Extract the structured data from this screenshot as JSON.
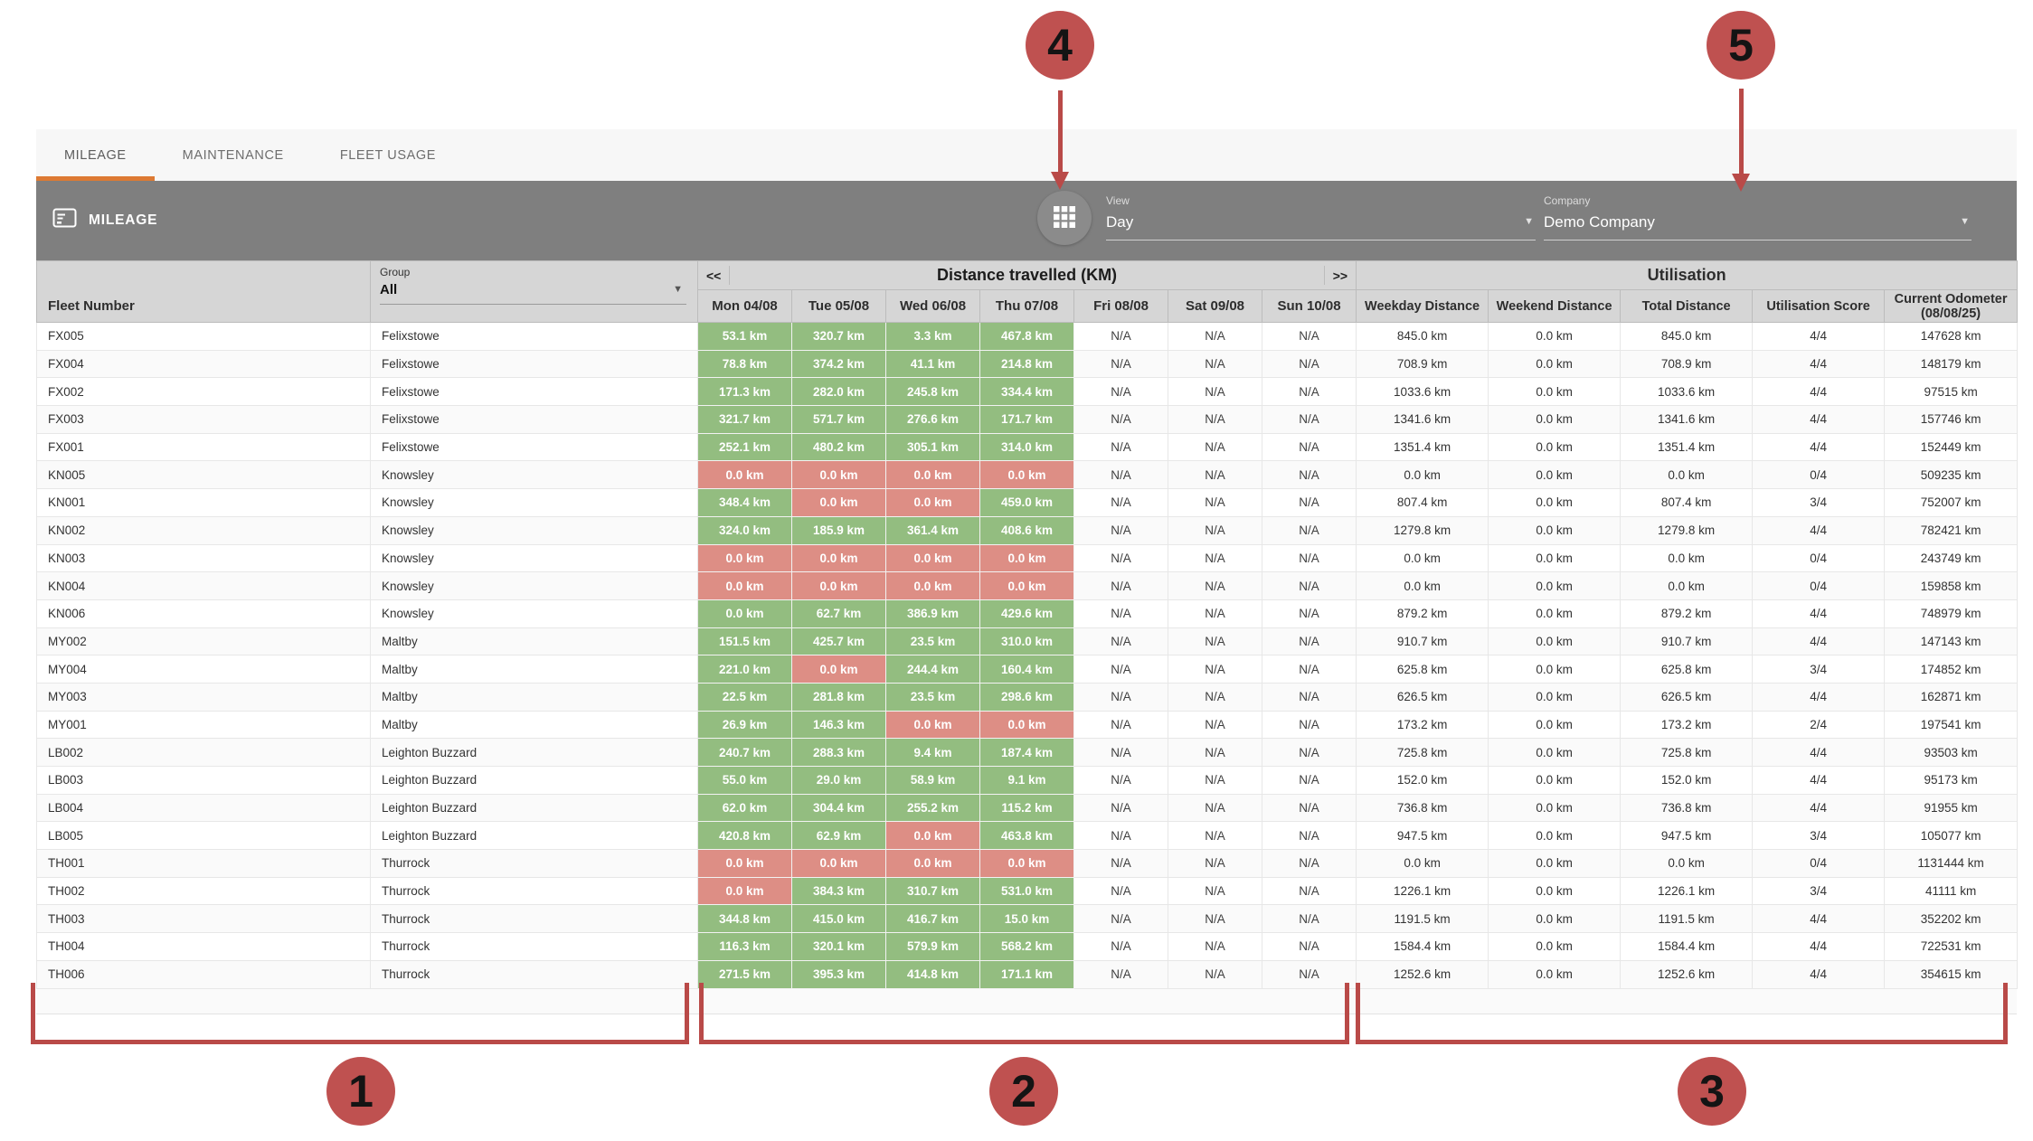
{
  "tabs": [
    {
      "label": "MILEAGE",
      "active": true
    },
    {
      "label": "MAINTENANCE",
      "active": false
    },
    {
      "label": "FLEET USAGE",
      "active": false
    }
  ],
  "header": {
    "title": "MILEAGE",
    "view": {
      "label": "View",
      "value": "Day"
    },
    "company": {
      "label": "Company",
      "value": "Demo Company"
    }
  },
  "table": {
    "fleet_header": "Fleet Number",
    "group_label": "Group",
    "group_value": "All",
    "nav_prev": "<<",
    "nav_next": ">>",
    "distance_title": "Distance travelled (KM)",
    "utilisation_title": "Utilisation",
    "day_columns": [
      "Mon 04/08",
      "Tue 05/08",
      "Wed 06/08",
      "Thu 07/08",
      "Fri 08/08",
      "Sat 09/08",
      "Sun 10/08"
    ],
    "util_columns": [
      "Weekday Distance",
      "Weekend Distance",
      "Total Distance",
      "Utilisation Score"
    ],
    "odometer_header": {
      "line1": "Current Odometer",
      "line2": "(08/08/25)"
    },
    "rows": [
      {
        "fleet": "FX005",
        "group": "Felixstowe",
        "days": [
          [
            "53.1 km",
            "g"
          ],
          [
            "320.7 km",
            "g"
          ],
          [
            "3.3 km",
            "g"
          ],
          [
            "467.8 km",
            "g"
          ],
          [
            "N/A",
            "n"
          ],
          [
            "N/A",
            "n"
          ],
          [
            "N/A",
            "n"
          ]
        ],
        "weekday": "845.0 km",
        "weekend": "0.0 km",
        "total": "845.0 km",
        "score": "4/4",
        "odometer": "147628 km"
      },
      {
        "fleet": "FX004",
        "group": "Felixstowe",
        "days": [
          [
            "78.8 km",
            "g"
          ],
          [
            "374.2 km",
            "g"
          ],
          [
            "41.1 km",
            "g"
          ],
          [
            "214.8 km",
            "g"
          ],
          [
            "N/A",
            "n"
          ],
          [
            "N/A",
            "n"
          ],
          [
            "N/A",
            "n"
          ]
        ],
        "weekday": "708.9 km",
        "weekend": "0.0 km",
        "total": "708.9 km",
        "score": "4/4",
        "odometer": "148179 km"
      },
      {
        "fleet": "FX002",
        "group": "Felixstowe",
        "days": [
          [
            "171.3 km",
            "g"
          ],
          [
            "282.0 km",
            "g"
          ],
          [
            "245.8 km",
            "g"
          ],
          [
            "334.4 km",
            "g"
          ],
          [
            "N/A",
            "n"
          ],
          [
            "N/A",
            "n"
          ],
          [
            "N/A",
            "n"
          ]
        ],
        "weekday": "1033.6 km",
        "weekend": "0.0 km",
        "total": "1033.6 km",
        "score": "4/4",
        "odometer": "97515 km"
      },
      {
        "fleet": "FX003",
        "group": "Felixstowe",
        "days": [
          [
            "321.7 km",
            "g"
          ],
          [
            "571.7 km",
            "g"
          ],
          [
            "276.6 km",
            "g"
          ],
          [
            "171.7 km",
            "g"
          ],
          [
            "N/A",
            "n"
          ],
          [
            "N/A",
            "n"
          ],
          [
            "N/A",
            "n"
          ]
        ],
        "weekday": "1341.6 km",
        "weekend": "0.0 km",
        "total": "1341.6 km",
        "score": "4/4",
        "odometer": "157746 km"
      },
      {
        "fleet": "FX001",
        "group": "Felixstowe",
        "days": [
          [
            "252.1 km",
            "g"
          ],
          [
            "480.2 km",
            "g"
          ],
          [
            "305.1 km",
            "g"
          ],
          [
            "314.0 km",
            "g"
          ],
          [
            "N/A",
            "n"
          ],
          [
            "N/A",
            "n"
          ],
          [
            "N/A",
            "n"
          ]
        ],
        "weekday": "1351.4 km",
        "weekend": "0.0 km",
        "total": "1351.4 km",
        "score": "4/4",
        "odometer": "152449 km"
      },
      {
        "fleet": "KN005",
        "group": "Knowsley",
        "days": [
          [
            "0.0 km",
            "r"
          ],
          [
            "0.0 km",
            "r"
          ],
          [
            "0.0 km",
            "r"
          ],
          [
            "0.0 km",
            "r"
          ],
          [
            "N/A",
            "n"
          ],
          [
            "N/A",
            "n"
          ],
          [
            "N/A",
            "n"
          ]
        ],
        "weekday": "0.0 km",
        "weekend": "0.0 km",
        "total": "0.0 km",
        "score": "0/4",
        "odometer": "509235 km"
      },
      {
        "fleet": "KN001",
        "group": "Knowsley",
        "days": [
          [
            "348.4 km",
            "g"
          ],
          [
            "0.0 km",
            "r"
          ],
          [
            "0.0 km",
            "r"
          ],
          [
            "459.0 km",
            "g"
          ],
          [
            "N/A",
            "n"
          ],
          [
            "N/A",
            "n"
          ],
          [
            "N/A",
            "n"
          ]
        ],
        "weekday": "807.4 km",
        "weekend": "0.0 km",
        "total": "807.4 km",
        "score": "3/4",
        "odometer": "752007 km"
      },
      {
        "fleet": "KN002",
        "group": "Knowsley",
        "days": [
          [
            "324.0 km",
            "g"
          ],
          [
            "185.9 km",
            "g"
          ],
          [
            "361.4 km",
            "g"
          ],
          [
            "408.6 km",
            "g"
          ],
          [
            "N/A",
            "n"
          ],
          [
            "N/A",
            "n"
          ],
          [
            "N/A",
            "n"
          ]
        ],
        "weekday": "1279.8 km",
        "weekend": "0.0 km",
        "total": "1279.8 km",
        "score": "4/4",
        "odometer": "782421 km"
      },
      {
        "fleet": "KN003",
        "group": "Knowsley",
        "days": [
          [
            "0.0 km",
            "r"
          ],
          [
            "0.0 km",
            "r"
          ],
          [
            "0.0 km",
            "r"
          ],
          [
            "0.0 km",
            "r"
          ],
          [
            "N/A",
            "n"
          ],
          [
            "N/A",
            "n"
          ],
          [
            "N/A",
            "n"
          ]
        ],
        "weekday": "0.0 km",
        "weekend": "0.0 km",
        "total": "0.0 km",
        "score": "0/4",
        "odometer": "243749 km"
      },
      {
        "fleet": "KN004",
        "group": "Knowsley",
        "days": [
          [
            "0.0 km",
            "r"
          ],
          [
            "0.0 km",
            "r"
          ],
          [
            "0.0 km",
            "r"
          ],
          [
            "0.0 km",
            "r"
          ],
          [
            "N/A",
            "n"
          ],
          [
            "N/A",
            "n"
          ],
          [
            "N/A",
            "n"
          ]
        ],
        "weekday": "0.0 km",
        "weekend": "0.0 km",
        "total": "0.0 km",
        "score": "0/4",
        "odometer": "159858 km"
      },
      {
        "fleet": "KN006",
        "group": "Knowsley",
        "days": [
          [
            "0.0 km",
            "g"
          ],
          [
            "62.7 km",
            "g"
          ],
          [
            "386.9 km",
            "g"
          ],
          [
            "429.6 km",
            "g"
          ],
          [
            "N/A",
            "n"
          ],
          [
            "N/A",
            "n"
          ],
          [
            "N/A",
            "n"
          ]
        ],
        "weekday": "879.2 km",
        "weekend": "0.0 km",
        "total": "879.2 km",
        "score": "4/4",
        "odometer": "748979 km"
      },
      {
        "fleet": "MY002",
        "group": "Maltby",
        "days": [
          [
            "151.5 km",
            "g"
          ],
          [
            "425.7 km",
            "g"
          ],
          [
            "23.5 km",
            "g"
          ],
          [
            "310.0 km",
            "g"
          ],
          [
            "N/A",
            "n"
          ],
          [
            "N/A",
            "n"
          ],
          [
            "N/A",
            "n"
          ]
        ],
        "weekday": "910.7 km",
        "weekend": "0.0 km",
        "total": "910.7 km",
        "score": "4/4",
        "odometer": "147143 km"
      },
      {
        "fleet": "MY004",
        "group": "Maltby",
        "days": [
          [
            "221.0 km",
            "g"
          ],
          [
            "0.0 km",
            "r"
          ],
          [
            "244.4 km",
            "g"
          ],
          [
            "160.4 km",
            "g"
          ],
          [
            "N/A",
            "n"
          ],
          [
            "N/A",
            "n"
          ],
          [
            "N/A",
            "n"
          ]
        ],
        "weekday": "625.8 km",
        "weekend": "0.0 km",
        "total": "625.8 km",
        "score": "3/4",
        "odometer": "174852 km"
      },
      {
        "fleet": "MY003",
        "group": "Maltby",
        "days": [
          [
            "22.5 km",
            "g"
          ],
          [
            "281.8 km",
            "g"
          ],
          [
            "23.5 km",
            "g"
          ],
          [
            "298.6 km",
            "g"
          ],
          [
            "N/A",
            "n"
          ],
          [
            "N/A",
            "n"
          ],
          [
            "N/A",
            "n"
          ]
        ],
        "weekday": "626.5 km",
        "weekend": "0.0 km",
        "total": "626.5 km",
        "score": "4/4",
        "odometer": "162871 km"
      },
      {
        "fleet": "MY001",
        "group": "Maltby",
        "days": [
          [
            "26.9 km",
            "g"
          ],
          [
            "146.3 km",
            "g"
          ],
          [
            "0.0 km",
            "r"
          ],
          [
            "0.0 km",
            "r"
          ],
          [
            "N/A",
            "n"
          ],
          [
            "N/A",
            "n"
          ],
          [
            "N/A",
            "n"
          ]
        ],
        "weekday": "173.2 km",
        "weekend": "0.0 km",
        "total": "173.2 km",
        "score": "2/4",
        "odometer": "197541 km"
      },
      {
        "fleet": "LB002",
        "group": "Leighton Buzzard",
        "days": [
          [
            "240.7 km",
            "g"
          ],
          [
            "288.3 km",
            "g"
          ],
          [
            "9.4 km",
            "g"
          ],
          [
            "187.4 km",
            "g"
          ],
          [
            "N/A",
            "n"
          ],
          [
            "N/A",
            "n"
          ],
          [
            "N/A",
            "n"
          ]
        ],
        "weekday": "725.8 km",
        "weekend": "0.0 km",
        "total": "725.8 km",
        "score": "4/4",
        "odometer": "93503 km"
      },
      {
        "fleet": "LB003",
        "group": "Leighton Buzzard",
        "days": [
          [
            "55.0 km",
            "g"
          ],
          [
            "29.0 km",
            "g"
          ],
          [
            "58.9 km",
            "g"
          ],
          [
            "9.1 km",
            "g"
          ],
          [
            "N/A",
            "n"
          ],
          [
            "N/A",
            "n"
          ],
          [
            "N/A",
            "n"
          ]
        ],
        "weekday": "152.0 km",
        "weekend": "0.0 km",
        "total": "152.0 km",
        "score": "4/4",
        "odometer": "95173 km"
      },
      {
        "fleet": "LB004",
        "group": "Leighton Buzzard",
        "days": [
          [
            "62.0 km",
            "g"
          ],
          [
            "304.4 km",
            "g"
          ],
          [
            "255.2 km",
            "g"
          ],
          [
            "115.2 km",
            "g"
          ],
          [
            "N/A",
            "n"
          ],
          [
            "N/A",
            "n"
          ],
          [
            "N/A",
            "n"
          ]
        ],
        "weekday": "736.8 km",
        "weekend": "0.0 km",
        "total": "736.8 km",
        "score": "4/4",
        "odometer": "91955 km"
      },
      {
        "fleet": "LB005",
        "group": "Leighton Buzzard",
        "days": [
          [
            "420.8 km",
            "g"
          ],
          [
            "62.9 km",
            "g"
          ],
          [
            "0.0 km",
            "r"
          ],
          [
            "463.8 km",
            "g"
          ],
          [
            "N/A",
            "n"
          ],
          [
            "N/A",
            "n"
          ],
          [
            "N/A",
            "n"
          ]
        ],
        "weekday": "947.5 km",
        "weekend": "0.0 km",
        "total": "947.5 km",
        "score": "3/4",
        "odometer": "105077 km"
      },
      {
        "fleet": "TH001",
        "group": "Thurrock",
        "days": [
          [
            "0.0 km",
            "r"
          ],
          [
            "0.0 km",
            "r"
          ],
          [
            "0.0 km",
            "r"
          ],
          [
            "0.0 km",
            "r"
          ],
          [
            "N/A",
            "n"
          ],
          [
            "N/A",
            "n"
          ],
          [
            "N/A",
            "n"
          ]
        ],
        "weekday": "0.0 km",
        "weekend": "0.0 km",
        "total": "0.0 km",
        "score": "0/4",
        "odometer": "1131444 km"
      },
      {
        "fleet": "TH002",
        "group": "Thurrock",
        "days": [
          [
            "0.0 km",
            "r"
          ],
          [
            "384.3 km",
            "g"
          ],
          [
            "310.7 km",
            "g"
          ],
          [
            "531.0 km",
            "g"
          ],
          [
            "N/A",
            "n"
          ],
          [
            "N/A",
            "n"
          ],
          [
            "N/A",
            "n"
          ]
        ],
        "weekday": "1226.1 km",
        "weekend": "0.0 km",
        "total": "1226.1 km",
        "score": "3/4",
        "odometer": "41111 km"
      },
      {
        "fleet": "TH003",
        "group": "Thurrock",
        "days": [
          [
            "344.8 km",
            "g"
          ],
          [
            "415.0 km",
            "g"
          ],
          [
            "416.7 km",
            "g"
          ],
          [
            "15.0 km",
            "g"
          ],
          [
            "N/A",
            "n"
          ],
          [
            "N/A",
            "n"
          ],
          [
            "N/A",
            "n"
          ]
        ],
        "weekday": "1191.5 km",
        "weekend": "0.0 km",
        "total": "1191.5 km",
        "score": "4/4",
        "odometer": "352202 km"
      },
      {
        "fleet": "TH004",
        "group": "Thurrock",
        "days": [
          [
            "116.3 km",
            "g"
          ],
          [
            "320.1 km",
            "g"
          ],
          [
            "579.9 km",
            "g"
          ],
          [
            "568.2 km",
            "g"
          ],
          [
            "N/A",
            "n"
          ],
          [
            "N/A",
            "n"
          ],
          [
            "N/A",
            "n"
          ]
        ],
        "weekday": "1584.4 km",
        "weekend": "0.0 km",
        "total": "1584.4 km",
        "score": "4/4",
        "odometer": "722531 km"
      },
      {
        "fleet": "TH006",
        "group": "Thurrock",
        "days": [
          [
            "271.5 km",
            "g"
          ],
          [
            "395.3 km",
            "g"
          ],
          [
            "414.8 km",
            "g"
          ],
          [
            "171.1 km",
            "g"
          ],
          [
            "N/A",
            "n"
          ],
          [
            "N/A",
            "n"
          ],
          [
            "N/A",
            "n"
          ]
        ],
        "weekday": "1252.6 km",
        "weekend": "0.0 km",
        "total": "1252.6 km",
        "score": "4/4",
        "odometer": "354615 km"
      }
    ]
  },
  "annotations": {
    "accent_red": "#b94a48",
    "markers": [
      {
        "label": "1"
      },
      {
        "label": "2"
      },
      {
        "label": "3"
      },
      {
        "label": "4"
      },
      {
        "label": "5"
      }
    ]
  },
  "colors": {
    "positive_cell": "#93bd80",
    "zero_cell": "#dd8e85",
    "tab_accent": "#dd7a33",
    "appbar": "#7f7f7f"
  }
}
